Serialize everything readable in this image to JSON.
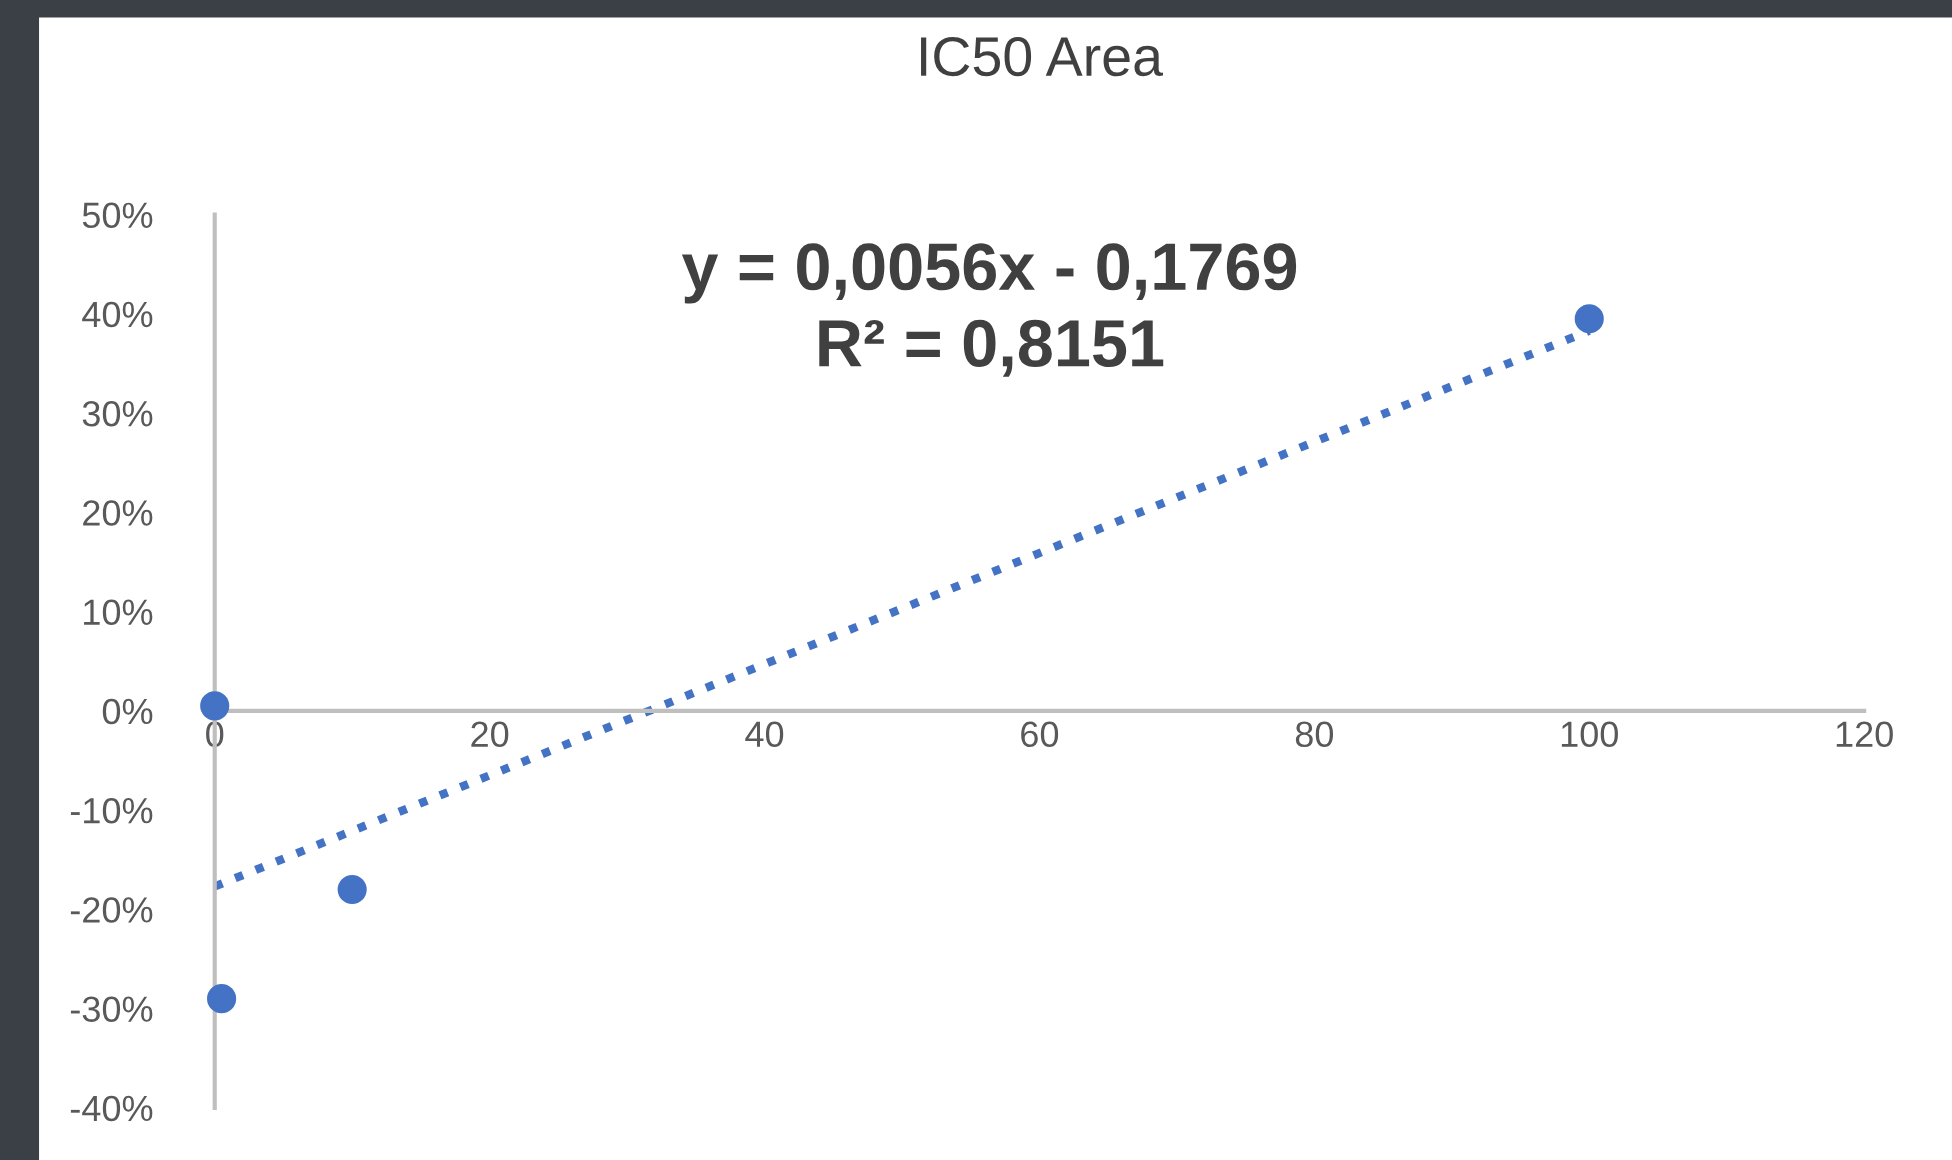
{
  "chart_data": {
    "type": "scatter",
    "title": "IC50 Area",
    "series": [
      {
        "color": "#4472c4",
        "x": [
          0,
          0.5,
          10,
          100
        ],
        "values": [
          0.005,
          -0.29,
          -0.18,
          0.395
        ],
        "marker": "circle"
      },
      {
        "type": "line",
        "color": "#4472c4",
        "x": [
          0,
          100
        ],
        "values": [
          -0.177,
          0.383
        ],
        "line_style": "dotted",
        "marker": "none"
      }
    ],
    "annotations": [
      "y = 0,0056x - 0,1769\nR² = 0,8151"
    ],
    "xlim": [
      0,
      120
    ],
    "xticks": [
      0,
      20,
      40,
      60,
      80,
      100,
      120
    ],
    "ylim": [
      -0.4,
      0.5
    ],
    "yticks": [
      {
        "value": -0.4,
        "label": "-40%"
      },
      {
        "value": -0.3,
        "label": "-30%"
      },
      {
        "value": -0.2,
        "label": "-20%"
      },
      {
        "value": -0.1,
        "label": "-10%"
      },
      {
        "value": 0,
        "label": "0%"
      },
      {
        "value": 0.1,
        "label": "10%"
      },
      {
        "value": 0.2,
        "label": "20%"
      },
      {
        "value": 0.3,
        "label": "30%"
      },
      {
        "value": 0.4,
        "label": "40%"
      },
      {
        "value": 0.5,
        "label": "50%"
      }
    ],
    "grid": false,
    "legend": false
  }
}
